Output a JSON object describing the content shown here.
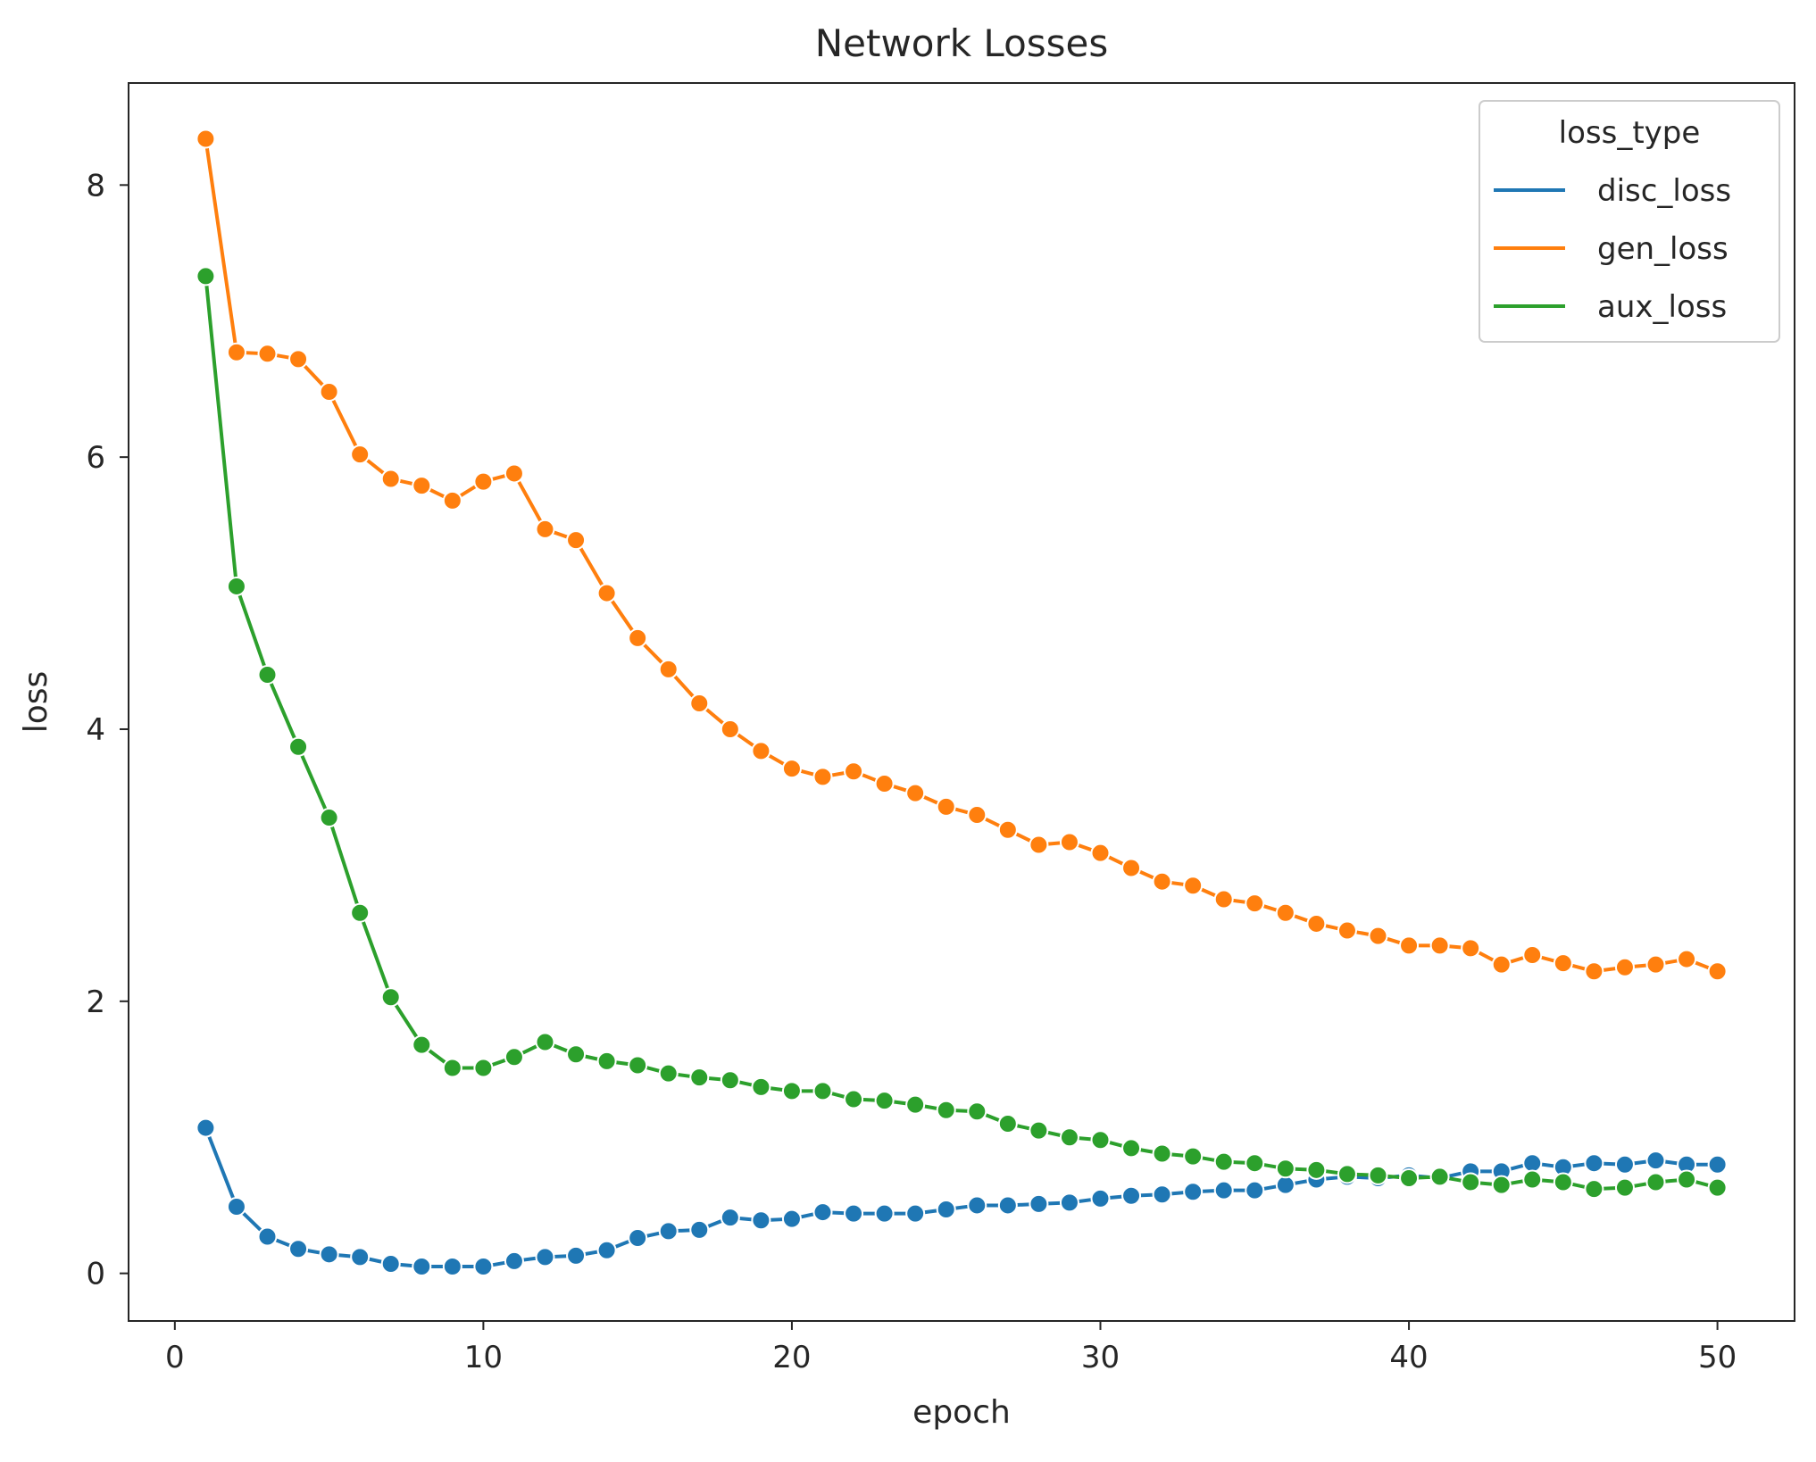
{
  "chart_data": {
    "type": "line",
    "title": "Network Losses",
    "xlabel": "epoch",
    "ylabel": "loss",
    "xlim": [
      -1.5,
      52.5
    ],
    "ylim": [
      -0.35,
      8.75
    ],
    "xticks": [
      0,
      10,
      20,
      30,
      40,
      50
    ],
    "yticks": [
      0,
      2,
      4,
      6,
      8
    ],
    "grid": false,
    "legend": {
      "title": "loss_type",
      "placement": "top-right"
    },
    "x": [
      1,
      2,
      3,
      4,
      5,
      6,
      7,
      8,
      9,
      10,
      11,
      12,
      13,
      14,
      15,
      16,
      17,
      18,
      19,
      20,
      21,
      22,
      23,
      24,
      25,
      26,
      27,
      28,
      29,
      30,
      31,
      32,
      33,
      34,
      35,
      36,
      37,
      38,
      39,
      40,
      41,
      42,
      43,
      44,
      45,
      46,
      47,
      48,
      49,
      50
    ],
    "series": [
      {
        "name": "disc_loss",
        "color": "#1f77b4",
        "values": [
          1.07,
          0.49,
          0.27,
          0.18,
          0.14,
          0.12,
          0.07,
          0.05,
          0.05,
          0.05,
          0.09,
          0.12,
          0.13,
          0.17,
          0.26,
          0.31,
          0.32,
          0.41,
          0.39,
          0.4,
          0.45,
          0.44,
          0.44,
          0.44,
          0.47,
          0.5,
          0.5,
          0.51,
          0.52,
          0.55,
          0.57,
          0.58,
          0.6,
          0.61,
          0.61,
          0.65,
          0.69,
          0.71,
          0.7,
          0.72,
          0.7,
          0.75,
          0.75,
          0.81,
          0.78,
          0.81,
          0.8,
          0.83,
          0.8,
          0.8
        ]
      },
      {
        "name": "gen_loss",
        "color": "#ff7f0e",
        "values": [
          8.34,
          6.77,
          6.76,
          6.72,
          6.48,
          6.02,
          5.84,
          5.79,
          5.68,
          5.82,
          5.88,
          5.47,
          5.39,
          5.0,
          4.67,
          4.44,
          4.19,
          4.0,
          3.84,
          3.71,
          3.65,
          3.69,
          3.6,
          3.53,
          3.43,
          3.37,
          3.26,
          3.15,
          3.17,
          3.09,
          2.98,
          2.88,
          2.85,
          2.75,
          2.72,
          2.65,
          2.57,
          2.52,
          2.48,
          2.41,
          2.41,
          2.39,
          2.27,
          2.34,
          2.28,
          2.22,
          2.25,
          2.27,
          2.31,
          2.22
        ]
      },
      {
        "name": "aux_loss",
        "color": "#2ca02c",
        "values": [
          7.33,
          5.05,
          4.4,
          3.87,
          3.35,
          2.65,
          2.03,
          1.68,
          1.51,
          1.51,
          1.59,
          1.7,
          1.61,
          1.56,
          1.53,
          1.47,
          1.44,
          1.42,
          1.37,
          1.34,
          1.34,
          1.28,
          1.27,
          1.24,
          1.2,
          1.19,
          1.1,
          1.05,
          1.0,
          0.98,
          0.92,
          0.88,
          0.86,
          0.82,
          0.81,
          0.77,
          0.76,
          0.73,
          0.72,
          0.7,
          0.71,
          0.67,
          0.65,
          0.69,
          0.67,
          0.62,
          0.63,
          0.67,
          0.69,
          0.63
        ]
      }
    ]
  }
}
